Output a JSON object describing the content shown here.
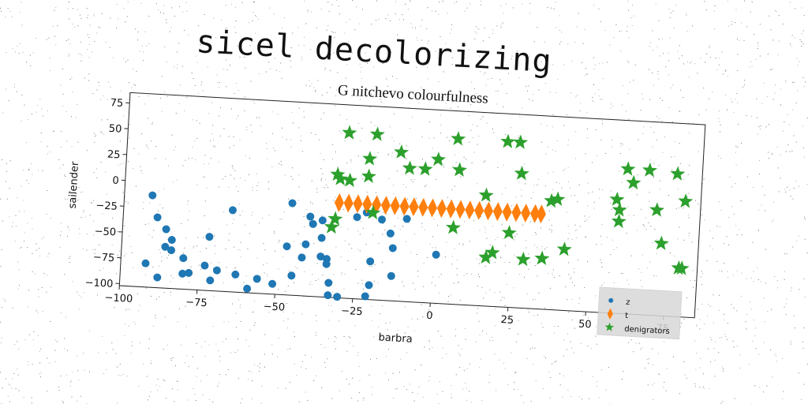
{
  "figure_title": "sicel decolorizing",
  "chart_data": {
    "type": "scatter",
    "title": "G nitchevo colourfulness",
    "xlabel": "barbra",
    "ylabel": "sailender",
    "xlim": [
      -100,
      85
    ],
    "ylim": [
      -102,
      85
    ],
    "xticks": [
      -100,
      -75,
      -50,
      -25,
      0,
      25,
      50,
      75
    ],
    "yticks": [
      -100,
      -75,
      -50,
      -25,
      0,
      25,
      50,
      75
    ],
    "xtick_labels": [
      "−100",
      "−75",
      "−50",
      "−25",
      "0",
      "25",
      "50",
      "75"
    ],
    "ytick_labels": [
      "−100",
      "−75",
      "−50",
      "−25",
      "0",
      "25",
      "50",
      "75"
    ],
    "grid": false,
    "legend_position": "lower-right",
    "series": [
      {
        "name": "z",
        "marker": "circle",
        "color": "#1f77b4",
        "points": [
          [
            -91,
            -13
          ],
          [
            -89,
            -34
          ],
          [
            -86,
            -45
          ],
          [
            -84,
            -55
          ],
          [
            -86,
            -62
          ],
          [
            -84,
            -65
          ],
          [
            -80,
            -72
          ],
          [
            -80,
            -87
          ],
          [
            -78,
            -86
          ],
          [
            -92,
            -79
          ],
          [
            -88,
            -92
          ],
          [
            -72,
            -50
          ],
          [
            -73,
            -78
          ],
          [
            -71,
            -92
          ],
          [
            -69,
            -82
          ],
          [
            -65,
            -23
          ],
          [
            -63,
            -85
          ],
          [
            -59,
            -98
          ],
          [
            -56,
            -88
          ],
          [
            -51,
            -92
          ],
          [
            -47,
            -55
          ],
          [
            -46,
            -13
          ],
          [
            -45,
            -83
          ],
          [
            -42,
            -65
          ],
          [
            -41,
            -52
          ],
          [
            -40,
            -25
          ],
          [
            -39,
            -32
          ],
          [
            -36,
            -28
          ],
          [
            -36,
            -45
          ],
          [
            -36,
            -63
          ],
          [
            -34,
            -70
          ],
          [
            -34,
            -65
          ],
          [
            -33,
            -88
          ],
          [
            -33,
            -100
          ],
          [
            -30,
            -101
          ],
          [
            -25,
            -23
          ],
          [
            -22,
            -18
          ],
          [
            -20,
            -65
          ],
          [
            -20,
            -88
          ],
          [
            -21,
            -99
          ],
          [
            -17,
            -24
          ],
          [
            -14,
            -37
          ],
          [
            -13,
            -51
          ],
          [
            -13,
            -78
          ],
          [
            -9,
            -22
          ],
          [
            1,
            -55
          ]
        ]
      },
      {
        "name": "t",
        "marker": "thin_diamond",
        "color": "#ff7f0e",
        "points": [
          [
            -31,
            -10
          ],
          [
            -28,
            -10
          ],
          [
            -25,
            -10
          ],
          [
            -22,
            -10
          ],
          [
            -19,
            -10
          ],
          [
            -16,
            -10
          ],
          [
            -13,
            -10
          ],
          [
            -10,
            -10
          ],
          [
            -7,
            -10
          ],
          [
            -4,
            -10
          ],
          [
            -1,
            -10
          ],
          [
            2,
            -10
          ],
          [
            5,
            -10
          ],
          [
            8,
            -10
          ],
          [
            11,
            -10
          ],
          [
            14,
            -10
          ],
          [
            17,
            -10
          ],
          [
            20,
            -10
          ],
          [
            23,
            -10
          ],
          [
            26,
            -10
          ],
          [
            29,
            -10
          ],
          [
            32,
            -10
          ],
          [
            34,
            -10
          ]
        ]
      },
      {
        "name": "denigrators",
        "marker": "star",
        "color": "#2ca02c",
        "points": [
          [
            -29,
            58
          ],
          [
            -20,
            58
          ],
          [
            -22,
            34
          ],
          [
            -32,
            17
          ],
          [
            -31,
            13
          ],
          [
            -28,
            12
          ],
          [
            -22,
            17
          ],
          [
            -12,
            42
          ],
          [
            -9,
            27
          ],
          [
            -4,
            27
          ],
          [
            0,
            37
          ],
          [
            7,
            28
          ],
          [
            6,
            58
          ],
          [
            22,
            58
          ],
          [
            26,
            58
          ],
          [
            27,
            28
          ],
          [
            16,
            5
          ],
          [
            -33,
            -34
          ],
          [
            -32,
            -26
          ],
          [
            -20,
            -18
          ],
          [
            6,
            -28
          ],
          [
            19,
            -50
          ],
          [
            17,
            -55
          ],
          [
            24,
            -30
          ],
          [
            29,
            -55
          ],
          [
            35,
            -53
          ],
          [
            37,
            3
          ],
          [
            39,
            5
          ],
          [
            42,
            -43
          ],
          [
            61,
            38
          ],
          [
            68,
            38
          ],
          [
            77,
            36
          ],
          [
            63,
            25
          ],
          [
            58,
            8
          ],
          [
            59,
            -2
          ],
          [
            59,
            -13
          ],
          [
            71,
            0
          ],
          [
            80,
            10
          ],
          [
            73,
            -32
          ],
          [
            79,
            -55
          ],
          [
            80,
            -55
          ]
        ]
      }
    ]
  }
}
